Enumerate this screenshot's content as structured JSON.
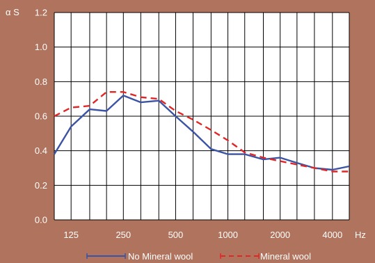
{
  "chart_data": {
    "type": "line",
    "ylabel": "α S",
    "xlabel": "Hz",
    "x_scale": "log",
    "grid": true,
    "legend_placement": "bottom",
    "ylim": [
      0.0,
      1.2
    ],
    "y_ticks": [
      "0.0",
      "0.2",
      "0.4",
      "0.6",
      "0.8",
      "1.0",
      "1.2"
    ],
    "x_tick_labels": [
      "125",
      "250",
      "500",
      "1000",
      "2000",
      "4000"
    ],
    "x": [
      100,
      125,
      160,
      200,
      250,
      315,
      400,
      500,
      630,
      800,
      1000,
      1250,
      1600,
      2000,
      2500,
      3150,
      4000,
      5000
    ],
    "series": [
      {
        "name": "No Mineral wool",
        "color": "#3b53a4",
        "dash": "solid",
        "values": [
          0.38,
          0.54,
          0.64,
          0.63,
          0.72,
          0.68,
          0.69,
          0.6,
          0.51,
          0.41,
          0.38,
          0.38,
          0.35,
          0.36,
          0.33,
          0.3,
          0.29,
          0.31
        ]
      },
      {
        "name": "Mineral wool",
        "color": "#e02726",
        "dash": "dashed",
        "values": [
          0.6,
          0.65,
          0.66,
          0.74,
          0.74,
          0.71,
          0.7,
          0.63,
          0.58,
          0.52,
          0.46,
          0.39,
          0.36,
          0.34,
          0.32,
          0.3,
          0.28,
          0.28
        ]
      }
    ]
  }
}
